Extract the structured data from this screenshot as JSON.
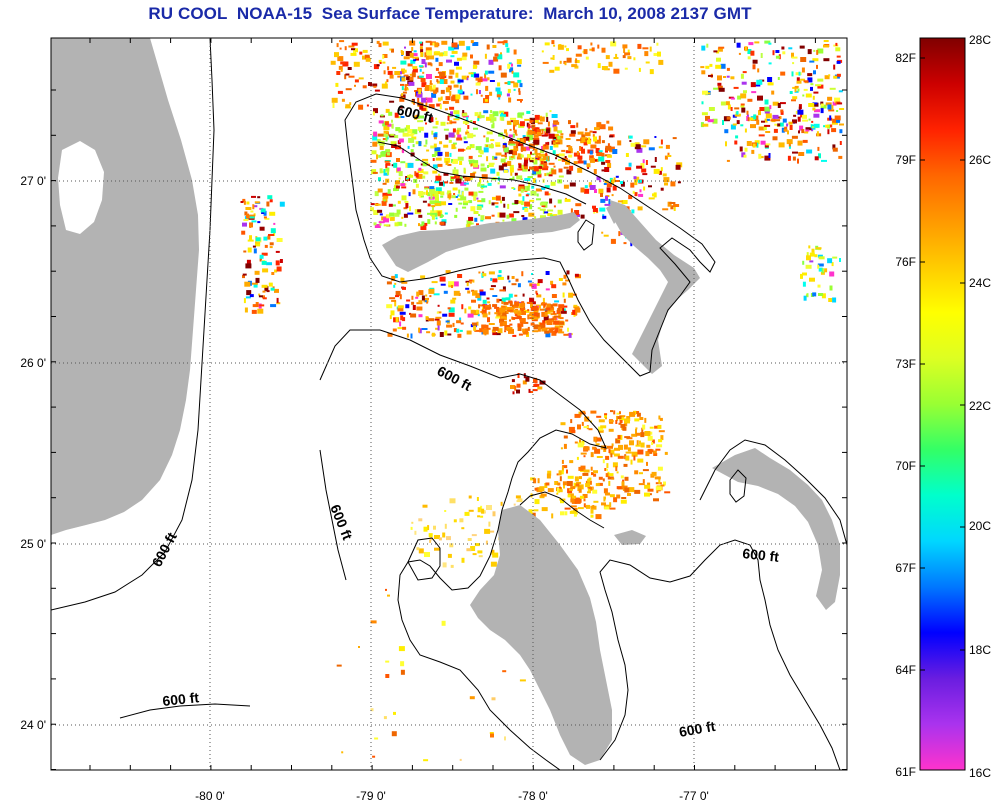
{
  "title": "RU COOL  NOAA-15  Sea Surface Temperature:  March 10, 2008 2137 GMT",
  "map": {
    "lat_ticks": [
      "27 0'",
      "26 0'",
      "25 0'",
      "24 0'"
    ],
    "lon_ticks": [
      "-80 0'",
      "-79 0'",
      "-78 0'",
      "-77 0'"
    ],
    "lat_range": [
      23.77,
      27.78
    ],
    "lon_range": [
      -80.95,
      -76.12
    ],
    "contour_label": "600 ft",
    "land_color": "#b3b3b3",
    "cloud_color": "#ffffff",
    "contour_color": "#000000",
    "grid_style": "dotted"
  },
  "colorbar": {
    "celsius_labels": [
      "28C",
      "26C",
      "24C",
      "22C",
      "20C",
      "18C",
      "16C"
    ],
    "fahrenheit_labels": [
      "82F",
      "79F",
      "76F",
      "73F",
      "70F",
      "67F",
      "64F",
      "61F"
    ],
    "range_c": [
      16,
      28
    ],
    "colors": [
      "#ff33cc",
      "#aa33ee",
      "#6a1de0",
      "#0000ff",
      "#0077ff",
      "#00d7ff",
      "#00ffcc",
      "#33ff66",
      "#99ff33",
      "#ddff22",
      "#ffff00",
      "#ffcc00",
      "#ff9900",
      "#ff6600",
      "#ff2200",
      "#cc0000",
      "#800000"
    ]
  }
}
